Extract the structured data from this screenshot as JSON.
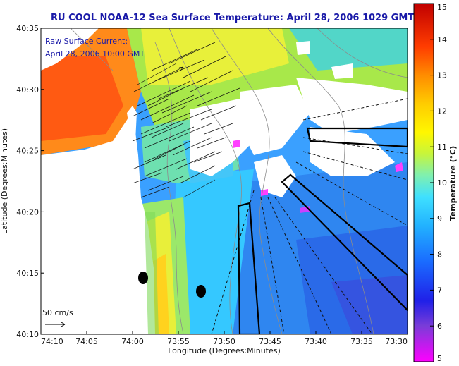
{
  "title": "RU COOL  NOAA-12  Sea Surface Temperature:  April 28, 2006 1029 GMT",
  "legend": {
    "line1": "Raw Surface Current:",
    "line2": "April 28, 2006 10:00 GMT",
    "scale_label": "50 cm/s"
  },
  "axes": {
    "xlabel": "Longitude (Degrees:Minutes)",
    "ylabel": "Latitude (Degrees:Minutes)",
    "xticks": [
      "74:10",
      "74:05",
      "74:00",
      "73:55",
      "73:50",
      "73:45",
      "73:40",
      "73:35",
      "73:30"
    ],
    "yticks": [
      "40:35",
      "40:30",
      "40:25",
      "40:20",
      "40:15",
      "40:10"
    ]
  },
  "colorbar": {
    "title": "Temperature (°C)",
    "ticks": [
      "15",
      "14",
      "13",
      "12",
      "11",
      "10",
      "9",
      "8",
      "7",
      "6",
      "5"
    ],
    "min": 5,
    "max": 15
  },
  "colors": {
    "title": "#1a1aa8",
    "land": "#ffffff",
    "cloud": "#ffffff"
  }
}
